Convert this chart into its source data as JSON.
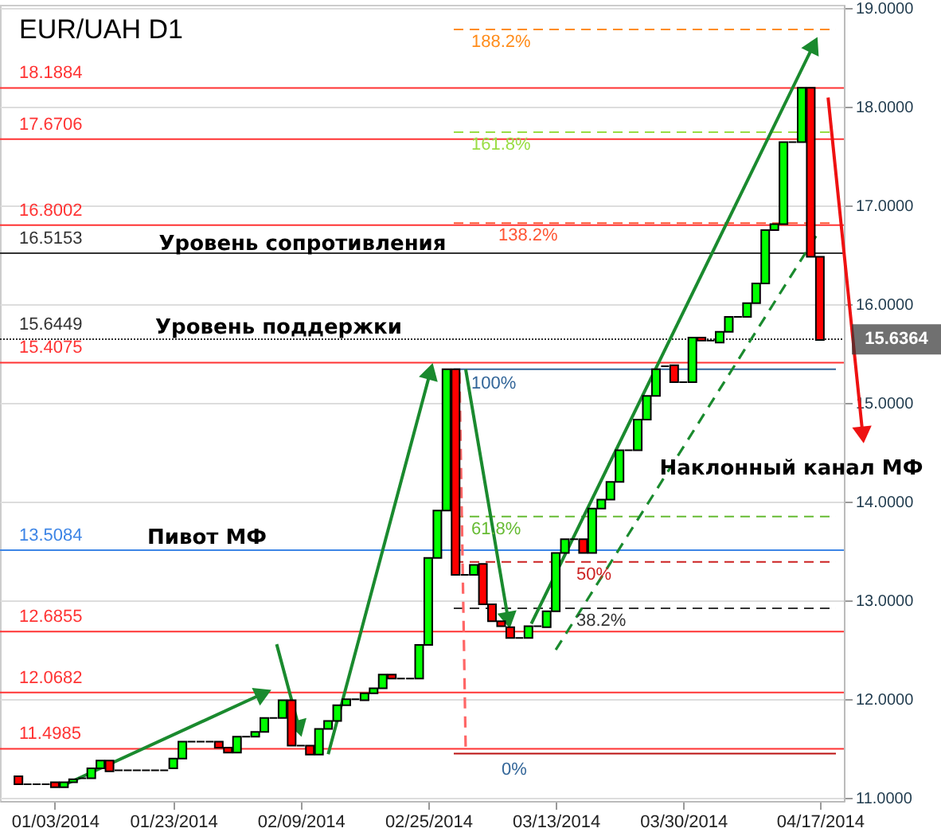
{
  "chart_data": {
    "type": "candlestick",
    "title": "EUR/UAH D1",
    "categories": [
      null,
      null,
      null,
      null,
      "01/03/2014",
      null,
      null,
      null,
      null,
      null,
      null,
      null,
      null,
      null,
      null,
      null,
      null,
      "01/23/2014",
      null,
      null,
      null,
      null,
      null,
      null,
      null,
      null,
      null,
      null,
      null,
      null,
      null,
      "02/09/2014",
      null,
      null,
      null,
      null,
      null,
      null,
      null,
      null,
      null,
      null,
      null,
      null,
      null,
      "02/25/2014",
      null,
      null,
      null,
      null,
      null,
      null,
      null,
      null,
      null,
      null,
      null,
      null,
      null,
      "03/13/2014",
      null,
      null,
      null,
      null,
      null,
      null,
      null,
      null,
      null,
      null,
      null,
      null,
      null,
      "03/30/2014",
      null,
      null,
      null,
      null,
      null,
      null,
      null,
      null,
      null,
      null,
      null,
      null,
      null,
      null,
      "04/17/2014"
    ],
    "ohlc": [
      [
        11.22,
        11.22,
        11.14,
        11.14
      ],
      [
        11.14,
        11.14,
        11.14,
        11.14
      ],
      [
        11.14,
        11.14,
        11.14,
        11.14
      ],
      [
        11.14,
        11.14,
        11.14,
        11.14
      ],
      [
        11.16,
        11.16,
        11.11,
        11.11
      ],
      [
        11.11,
        11.16,
        11.11,
        11.16
      ],
      [
        11.16,
        11.19,
        11.16,
        11.19
      ],
      [
        11.2,
        11.2,
        11.2,
        11.2
      ],
      [
        11.2,
        11.3,
        11.2,
        11.3
      ],
      [
        11.3,
        11.38,
        11.3,
        11.38
      ],
      [
        11.38,
        11.38,
        11.27,
        11.27
      ],
      [
        11.28,
        11.28,
        11.28,
        11.28
      ],
      [
        11.28,
        11.28,
        11.28,
        11.28
      ],
      [
        11.28,
        11.28,
        11.28,
        11.28
      ],
      [
        11.28,
        11.28,
        11.28,
        11.28
      ],
      [
        11.28,
        11.28,
        11.28,
        11.28
      ],
      [
        11.28,
        11.28,
        11.28,
        11.28
      ],
      [
        11.3,
        11.4,
        11.3,
        11.4
      ],
      [
        11.4,
        11.57,
        11.4,
        11.57
      ],
      [
        11.57,
        11.57,
        11.57,
        11.57
      ],
      [
        11.57,
        11.57,
        11.57,
        11.57
      ],
      [
        11.57,
        11.57,
        11.57,
        11.57
      ],
      [
        11.57,
        11.57,
        11.51,
        11.51
      ],
      [
        11.51,
        11.51,
        11.46,
        11.46
      ],
      [
        11.46,
        11.62,
        11.46,
        11.62
      ],
      [
        11.62,
        11.62,
        11.62,
        11.62
      ],
      [
        11.62,
        11.67,
        11.62,
        11.67
      ],
      [
        11.67,
        11.81,
        11.67,
        11.81
      ],
      [
        11.81,
        11.81,
        11.81,
        11.81
      ],
      [
        11.81,
        11.99,
        11.81,
        11.99
      ],
      [
        11.99,
        11.99,
        11.53,
        11.53
      ],
      [
        11.53,
        11.53,
        11.53,
        11.53
      ],
      [
        11.53,
        11.53,
        11.44,
        11.44
      ],
      [
        11.44,
        11.7,
        11.44,
        11.7
      ],
      [
        11.7,
        11.78,
        11.7,
        11.78
      ],
      [
        11.78,
        11.94,
        11.78,
        11.94
      ],
      [
        11.94,
        12.0,
        11.94,
        12.0
      ],
      [
        12.0,
        12.0,
        12.0,
        12.0
      ],
      [
        11.99,
        12.06,
        11.99,
        12.06
      ],
      [
        12.06,
        12.11,
        12.06,
        12.11
      ],
      [
        12.11,
        12.25,
        12.11,
        12.25
      ],
      [
        12.25,
        12.25,
        12.21,
        12.21
      ],
      [
        12.21,
        12.21,
        12.21,
        12.21
      ],
      [
        12.21,
        12.21,
        12.21,
        12.21
      ],
      [
        12.21,
        12.55,
        12.21,
        12.55
      ],
      [
        12.55,
        13.43,
        12.55,
        13.43
      ],
      [
        13.43,
        13.91,
        13.43,
        13.91
      ],
      [
        13.91,
        15.34,
        13.91,
        15.34
      ],
      [
        15.34,
        15.34,
        13.26,
        13.26
      ],
      [
        13.26,
        13.26,
        13.26,
        13.26
      ],
      [
        13.26,
        13.36,
        13.26,
        13.36
      ],
      [
        13.37,
        13.37,
        12.96,
        12.96
      ],
      [
        12.96,
        12.96,
        12.79,
        12.79
      ],
      [
        12.79,
        12.79,
        12.74,
        12.74
      ],
      [
        12.73,
        12.73,
        12.62,
        12.62
      ],
      [
        12.62,
        12.62,
        12.62,
        12.62
      ],
      [
        12.62,
        12.74,
        12.62,
        12.74
      ],
      [
        12.74,
        12.74,
        12.74,
        12.74
      ],
      [
        12.73,
        12.89,
        12.73,
        12.89
      ],
      [
        12.89,
        13.48,
        12.89,
        13.48
      ],
      [
        13.48,
        13.62,
        13.48,
        13.62
      ],
      [
        13.62,
        13.62,
        13.62,
        13.62
      ],
      [
        13.62,
        13.62,
        13.48,
        13.48
      ],
      [
        13.48,
        13.93,
        13.48,
        13.93
      ],
      [
        13.93,
        14.02,
        13.93,
        14.02
      ],
      [
        14.02,
        14.2,
        14.02,
        14.2
      ],
      [
        14.2,
        14.52,
        14.2,
        14.52
      ],
      [
        14.52,
        14.52,
        14.52,
        14.52
      ],
      [
        14.52,
        14.83,
        14.52,
        14.83
      ],
      [
        14.83,
        15.07,
        14.83,
        15.07
      ],
      [
        15.07,
        15.34,
        15.07,
        15.34
      ],
      [
        15.37,
        15.37,
        15.37,
        15.37
      ],
      [
        15.38,
        15.38,
        15.21,
        15.21
      ],
      [
        15.21,
        15.21,
        15.21,
        15.21
      ],
      [
        15.21,
        15.66,
        15.21,
        15.66
      ],
      [
        15.66,
        15.66,
        15.63,
        15.63
      ],
      [
        15.63,
        15.63,
        15.63,
        15.63
      ],
      [
        15.61,
        15.72,
        15.61,
        15.72
      ],
      [
        15.72,
        15.87,
        15.72,
        15.87
      ],
      [
        15.87,
        15.87,
        15.87,
        15.87
      ],
      [
        15.87,
        16.01,
        15.87,
        16.01
      ],
      [
        16.01,
        16.21,
        16.01,
        16.21
      ],
      [
        16.21,
        16.75,
        16.21,
        16.75
      ],
      [
        16.75,
        16.81,
        16.75,
        16.81
      ],
      [
        16.81,
        17.64,
        16.81,
        17.64
      ],
      [
        17.64,
        17.64,
        17.64,
        17.64
      ],
      [
        17.64,
        18.19,
        17.64,
        18.19
      ],
      [
        18.19,
        18.19,
        16.48,
        16.48
      ],
      [
        16.48,
        16.48,
        15.6364,
        15.6364
      ]
    ],
    "series": [
      {
        "type": "line",
        "color": "#1a8a2e",
        "line_style": "dashed",
        "values": [
          null,
          null,
          null,
          null,
          null,
          null,
          null,
          null,
          null,
          null,
          null,
          null,
          null,
          null,
          null,
          null,
          null,
          null,
          null,
          null,
          null,
          null,
          null,
          null,
          null,
          null,
          null,
          null,
          null,
          null,
          null,
          null,
          null,
          null,
          null,
          null,
          null,
          null,
          null,
          null,
          null,
          null,
          null,
          null,
          null,
          null,
          null,
          null,
          null,
          null,
          null,
          null,
          null,
          null,
          null,
          null,
          null,
          null,
          null,
          12.5,
          null,
          null,
          null,
          null,
          null,
          null,
          null,
          null,
          null,
          null,
          null,
          null,
          null,
          null,
          null,
          null,
          null,
          null,
          null,
          null,
          null,
          null,
          null,
          null,
          null,
          null,
          null,
          null,
          16.75
        ]
      }
    ],
    "ylim": [
      10.97,
      19.03
    ],
    "yticks": [
      {
        "value": 11,
        "label": "11.0000"
      },
      {
        "value": 12,
        "label": "12.0000"
      },
      {
        "value": 13,
        "label": "13.0000"
      },
      {
        "value": 14,
        "label": "14.0000"
      },
      {
        "value": 15,
        "label": "15.0000"
      },
      {
        "value": 16,
        "label": "16.0000"
      },
      {
        "value": 17,
        "label": "17.0000"
      },
      {
        "value": 18,
        "label": "18.0000"
      },
      {
        "value": 19,
        "label": "19.0000"
      }
    ],
    "grid": "y",
    "ref_lines": [
      {
        "axis": "y",
        "value": 18.1884,
        "label": "18.1884",
        "color": "#ff3333"
      },
      {
        "axis": "y",
        "value": 17.6706,
        "label": "17.6706",
        "color": "#ff3333"
      },
      {
        "axis": "y",
        "value": 16.8002,
        "label": "16.8002",
        "color": "#ff3333"
      },
      {
        "axis": "y",
        "value": 16.5153,
        "label": "16.5153",
        "color": "#333333"
      },
      {
        "axis": "y",
        "value": 15.6449,
        "label": "15.6449",
        "color": "#333333",
        "line_style": "dotted"
      },
      {
        "axis": "y",
        "value": 15.4075,
        "label": "15.4075",
        "color": "#ff3333"
      },
      {
        "axis": "y",
        "value": 13.5084,
        "label": "13.5084",
        "color": "#3d85e6"
      },
      {
        "axis": "y",
        "value": 12.6855,
        "label": "12.6855",
        "color": "#ff3333"
      },
      {
        "axis": "y",
        "value": 12.0682,
        "label": "12.0682",
        "color": "#ff3333"
      },
      {
        "axis": "y",
        "value": 11.4985,
        "label": "11.4985",
        "color": "#ff3333"
      },
      {
        "axis": "y",
        "value": 18.78,
        "color": "#ff8c1a",
        "line_style": "dashed"
      },
      {
        "axis": "y",
        "value": 17.74,
        "color": "#99dd44",
        "line_style": "dashed"
      },
      {
        "axis": "y",
        "value": 16.82,
        "color": "#ff5533",
        "line_style": "dashed"
      },
      {
        "axis": "y",
        "value": 15.34,
        "color": "#336699"
      },
      {
        "axis": "y",
        "value": 13.85,
        "color": "#66bb33",
        "line_style": "dashed"
      },
      {
        "axis": "y",
        "value": 13.39,
        "color": "#cc2222",
        "line_style": "dashed"
      },
      {
        "axis": "y",
        "value": 12.92,
        "color": "#333333",
        "line_style": "dashed"
      },
      {
        "axis": "y",
        "value": 11.45,
        "color": "#bb1111"
      }
    ],
    "annotations": [
      "Уровень сопротивления",
      "Уровень поддержки",
      "Пивот МФ",
      "Наклонный канал МФ",
      "188.2%",
      "161.8%",
      "138.2%",
      {
        "text": "100%",
        "y": 15.34
      },
      "61.8%",
      "50%",
      "38.2%",
      "0%",
      "15.6364"
    ]
  }
}
